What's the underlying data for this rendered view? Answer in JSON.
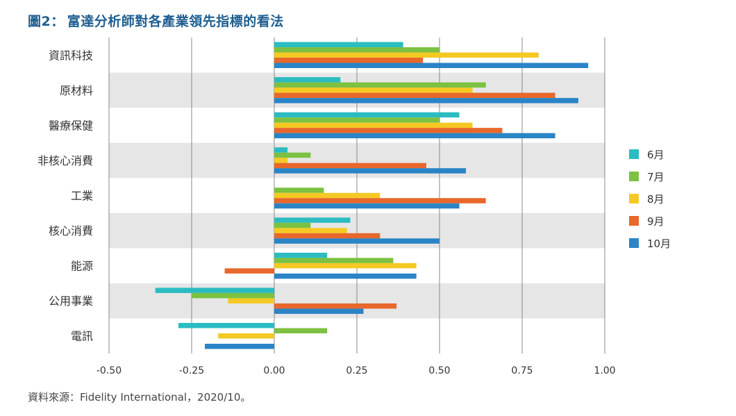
{
  "title": {
    "prefix": "圖2：",
    "text": "富達分析師對各產業領先指標的看法"
  },
  "source": "資料來源：Fidelity International，2020/10。",
  "colors": {
    "title": "#1f5e8f",
    "band": "#e6e6e6",
    "grid": "#888888",
    "series": [
      "#2bbcc2",
      "#7cc142",
      "#f5c924",
      "#e8672a",
      "#2a84c6"
    ]
  },
  "legend": [
    "6月",
    "7月",
    "8月",
    "9月",
    "10月"
  ],
  "chart_data": {
    "type": "bar",
    "orientation": "horizontal",
    "categories": [
      "資訊科技",
      "原材料",
      "醫療保健",
      "非核心消費",
      "工業",
      "核心消費",
      "能源",
      "公用事業",
      "電訊"
    ],
    "series": [
      {
        "name": "6月",
        "values": [
          0.39,
          0.2,
          0.56,
          0.04,
          null,
          0.23,
          0.16,
          -0.36,
          -0.29
        ]
      },
      {
        "name": "7月",
        "values": [
          0.5,
          0.64,
          0.5,
          0.11,
          0.15,
          0.11,
          0.36,
          -0.25,
          0.16
        ]
      },
      {
        "name": "8月",
        "values": [
          0.8,
          0.6,
          0.6,
          0.04,
          0.32,
          0.22,
          0.43,
          -0.14,
          -0.17
        ]
      },
      {
        "name": "9月",
        "values": [
          0.45,
          0.85,
          0.69,
          0.46,
          0.64,
          0.32,
          -0.15,
          0.37,
          null
        ]
      },
      {
        "name": "10月",
        "values": [
          0.95,
          0.92,
          0.85,
          0.58,
          0.56,
          0.5,
          0.43,
          0.27,
          -0.21
        ]
      }
    ],
    "xlim": [
      -0.5,
      1.0
    ],
    "xticks": [
      "-0.50",
      "-0.25",
      "0.00",
      "0.25",
      "0.50",
      "0.75",
      "1.00"
    ],
    "xtick_values": [
      -0.5,
      -0.25,
      0,
      0.25,
      0.5,
      0.75,
      1.0
    ],
    "grid": true,
    "legend_position": "right"
  }
}
